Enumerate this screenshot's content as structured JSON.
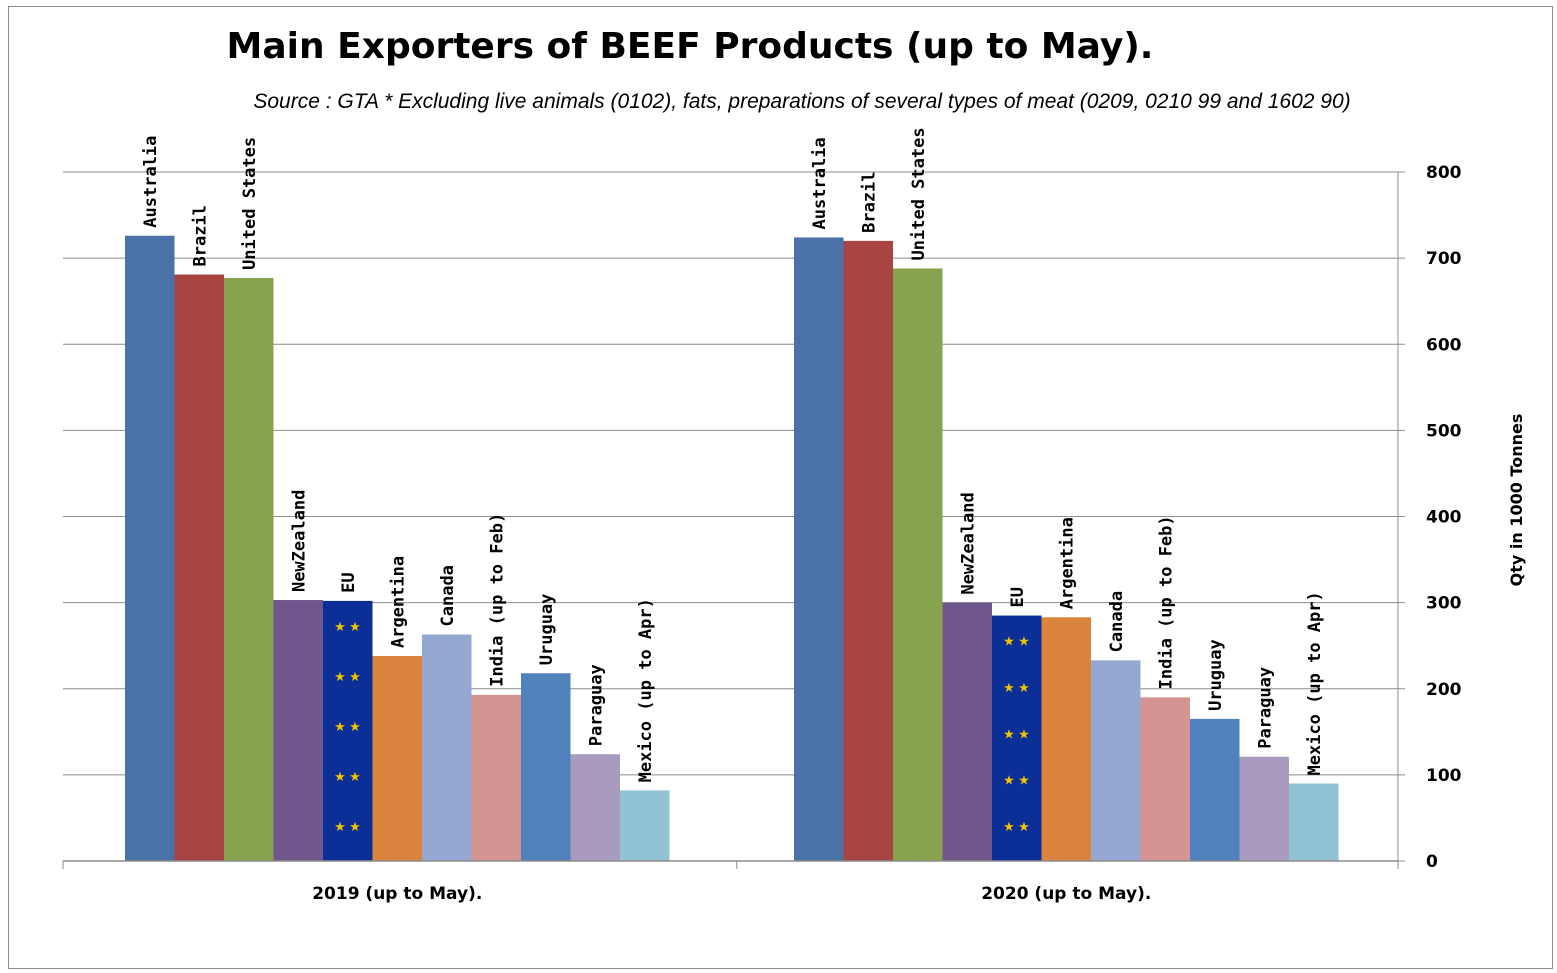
{
  "chart_data": {
    "type": "bar",
    "title": "Main Exporters of BEEF Products (up to May).",
    "subtitle": "Source : GTA  * Excluding live animals (0102), fats, preparations of several types of meat (0209, 0210 99 and 1602 90)",
    "ylabel": "Qty in 1000 Tonnes",
    "xlabel": "",
    "ylim": [
      0,
      800
    ],
    "yticks": [
      "0",
      "100",
      "200",
      "300",
      "400",
      "500",
      "600",
      "700",
      "800"
    ],
    "y_axis_side": "right",
    "grid": true,
    "legend": "none",
    "categories": [
      "2019 (up to May).",
      "2020 (up to May)."
    ],
    "series": [
      {
        "name": "Australia",
        "color": "#4a72a6",
        "values": [
          726,
          724
        ]
      },
      {
        "name": "Brazil",
        "color": "#a84543",
        "values": [
          681,
          720
        ]
      },
      {
        "name": "United States",
        "color": "#87a34d",
        "values": [
          677,
          688
        ]
      },
      {
        "name": "NewZealand",
        "color": "#6f568c",
        "values": [
          303,
          300
        ]
      },
      {
        "name": "EU",
        "color": "#0b2f96",
        "values": [
          302,
          285
        ]
      },
      {
        "name": "Argentina",
        "color": "#db843d",
        "values": [
          238,
          283
        ]
      },
      {
        "name": "Canada",
        "color": "#95a8d1",
        "values": [
          263,
          233
        ]
      },
      {
        "name": "India  (up to Feb)",
        "color": "#d49592",
        "values": [
          193,
          190
        ]
      },
      {
        "name": "Uruguay",
        "color": "#4f81bd",
        "values": [
          218,
          165
        ]
      },
      {
        "name": "Paraguay",
        "color": "#a99bbd",
        "values": [
          124,
          121
        ]
      },
      {
        "name": "Mexico  (up to Apr)",
        "color": "#92c3d5",
        "values": [
          82,
          90
        ]
      }
    ]
  }
}
